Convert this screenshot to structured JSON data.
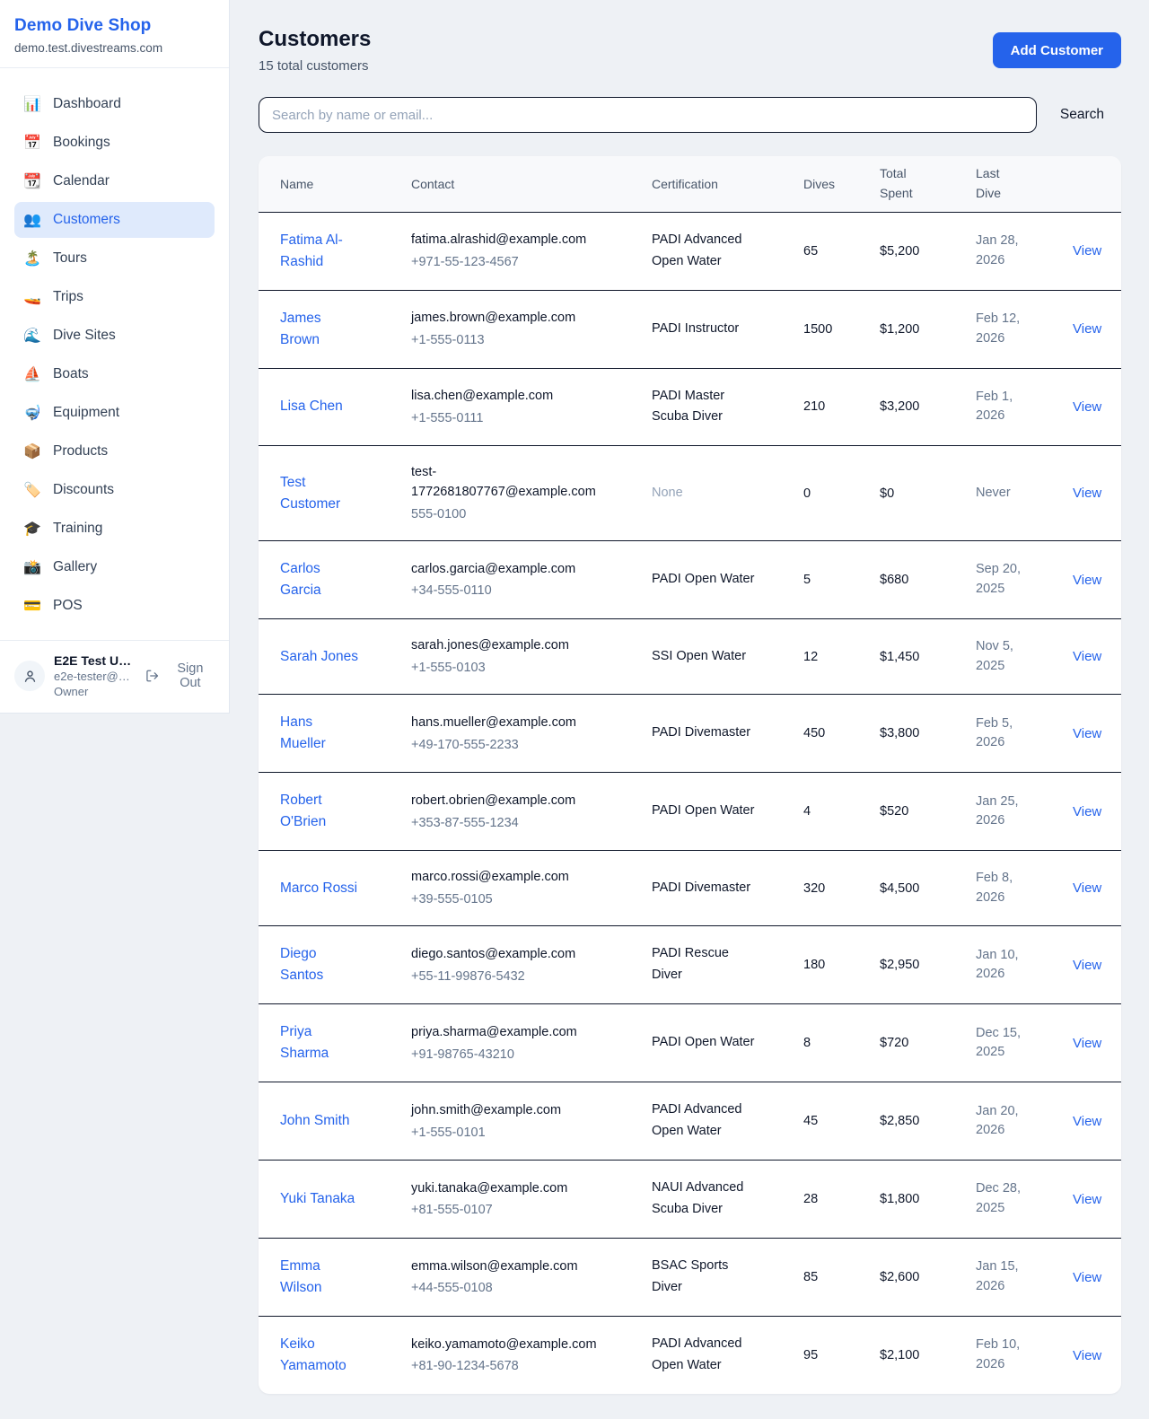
{
  "colors": {
    "brand_blue": "#2563eb",
    "active_item_bg": "#dfeafc",
    "page_bg": "#eef1f5",
    "table_header_bg": "#f8f9fb",
    "row_border": "#0f172a",
    "muted_text": "#64748b"
  },
  "sidebar": {
    "brand": {
      "title": "Demo Dive Shop",
      "subtitle": "demo.test.divestreams.com"
    },
    "items": [
      {
        "label": "Dashboard",
        "icon": "📊",
        "active": false
      },
      {
        "label": "Bookings",
        "icon": "📅",
        "active": false
      },
      {
        "label": "Calendar",
        "icon": "📆",
        "active": false
      },
      {
        "label": "Customers",
        "icon": "👥",
        "active": true
      },
      {
        "label": "Tours",
        "icon": "🏝️",
        "active": false
      },
      {
        "label": "Trips",
        "icon": "🚤",
        "active": false
      },
      {
        "label": "Dive Sites",
        "icon": "🌊",
        "active": false
      },
      {
        "label": "Boats",
        "icon": "⛵",
        "active": false
      },
      {
        "label": "Equipment",
        "icon": "🤿",
        "active": false
      },
      {
        "label": "Products",
        "icon": "📦",
        "active": false
      },
      {
        "label": "Discounts",
        "icon": "🏷️",
        "active": false
      },
      {
        "label": "Training",
        "icon": "🎓",
        "active": false
      },
      {
        "label": "Gallery",
        "icon": "📸",
        "active": false
      },
      {
        "label": "POS",
        "icon": "💳",
        "active": false
      }
    ],
    "user": {
      "name": "E2E Test U…",
      "email": "e2e-tester@…",
      "role": "Owner",
      "sign_out_label": "Sign Out"
    }
  },
  "header": {
    "title": "Customers",
    "subtitle": "15 total customers",
    "add_button_label": "Add Customer"
  },
  "search": {
    "placeholder": "Search by name or email...",
    "button_label": "Search"
  },
  "table": {
    "columns": [
      "Name",
      "Contact",
      "Certification",
      "Dives",
      "Total Spent",
      "Last Dive",
      ""
    ],
    "view_label": "View",
    "rows": [
      {
        "name": "Fatima Al-Rashid",
        "email": "fatima.alrashid@example.com",
        "phone": "+971-55-123-4567",
        "certification": "PADI Advanced Open Water",
        "dives": "65",
        "total_spent": "$5,200",
        "last_dive": "Jan 28, 2026"
      },
      {
        "name": "James Brown",
        "email": "james.brown@example.com",
        "phone": "+1-555-0113",
        "certification": "PADI Instructor",
        "dives": "1500",
        "total_spent": "$1,200",
        "last_dive": "Feb 12, 2026"
      },
      {
        "name": "Lisa Chen",
        "email": "lisa.chen@example.com",
        "phone": "+1-555-0111",
        "certification": "PADI Master Scuba Diver",
        "dives": "210",
        "total_spent": "$3,200",
        "last_dive": "Feb 1, 2026"
      },
      {
        "name": "Test Customer",
        "email": "test-1772681807767@example.com",
        "phone": "555-0100",
        "certification": "None",
        "dives": "0",
        "total_spent": "$0",
        "last_dive": "Never"
      },
      {
        "name": "Carlos Garcia",
        "email": "carlos.garcia@example.com",
        "phone": "+34-555-0110",
        "certification": "PADI Open Water",
        "dives": "5",
        "total_spent": "$680",
        "last_dive": "Sep 20, 2025"
      },
      {
        "name": "Sarah Jones",
        "email": "sarah.jones@example.com",
        "phone": "+1-555-0103",
        "certification": "SSI Open Water",
        "dives": "12",
        "total_spent": "$1,450",
        "last_dive": "Nov 5, 2025"
      },
      {
        "name": "Hans Mueller",
        "email": "hans.mueller@example.com",
        "phone": "+49-170-555-2233",
        "certification": "PADI Divemaster",
        "dives": "450",
        "total_spent": "$3,800",
        "last_dive": "Feb 5, 2026"
      },
      {
        "name": "Robert O'Brien",
        "email": "robert.obrien@example.com",
        "phone": "+353-87-555-1234",
        "certification": "PADI Open Water",
        "dives": "4",
        "total_spent": "$520",
        "last_dive": "Jan 25, 2026"
      },
      {
        "name": "Marco Rossi",
        "email": "marco.rossi@example.com",
        "phone": "+39-555-0105",
        "certification": "PADI Divemaster",
        "dives": "320",
        "total_spent": "$4,500",
        "last_dive": "Feb 8, 2026"
      },
      {
        "name": "Diego Santos",
        "email": "diego.santos@example.com",
        "phone": "+55-11-99876-5432",
        "certification": "PADI Rescue Diver",
        "dives": "180",
        "total_spent": "$2,950",
        "last_dive": "Jan 10, 2026"
      },
      {
        "name": "Priya Sharma",
        "email": "priya.sharma@example.com",
        "phone": "+91-98765-43210",
        "certification": "PADI Open Water",
        "dives": "8",
        "total_spent": "$720",
        "last_dive": "Dec 15, 2025"
      },
      {
        "name": "John Smith",
        "email": "john.smith@example.com",
        "phone": "+1-555-0101",
        "certification": "PADI Advanced Open Water",
        "dives": "45",
        "total_spent": "$2,850",
        "last_dive": "Jan 20, 2026"
      },
      {
        "name": "Yuki Tanaka",
        "email": "yuki.tanaka@example.com",
        "phone": "+81-555-0107",
        "certification": "NAUI Advanced Scuba Diver",
        "dives": "28",
        "total_spent": "$1,800",
        "last_dive": "Dec 28, 2025"
      },
      {
        "name": "Emma Wilson",
        "email": "emma.wilson@example.com",
        "phone": "+44-555-0108",
        "certification": "BSAC Sports Diver",
        "dives": "85",
        "total_spent": "$2,600",
        "last_dive": "Jan 15, 2026"
      },
      {
        "name": "Keiko Yamamoto",
        "email": "keiko.yamamoto@example.com",
        "phone": "+81-90-1234-5678",
        "certification": "PADI Advanced Open Water",
        "dives": "95",
        "total_spent": "$2,100",
        "last_dive": "Feb 10, 2026"
      }
    ]
  }
}
